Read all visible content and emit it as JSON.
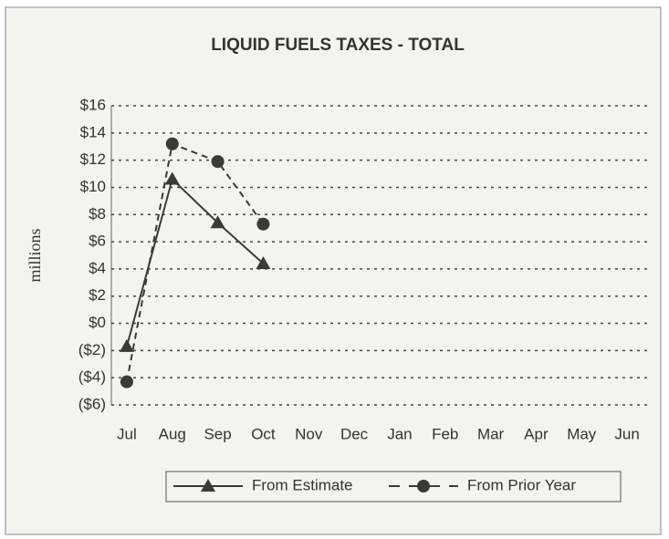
{
  "chart_data": {
    "type": "line",
    "title": "LIQUID FUELS TAXES - TOTAL",
    "y_label": "millions",
    "categories": [
      "Jul",
      "Aug",
      "Sep",
      "Oct",
      "Nov",
      "Dec",
      "Jan",
      "Feb",
      "Mar",
      "Apr",
      "May",
      "Jun"
    ],
    "series": [
      {
        "name": "From Estimate",
        "color": "#3a3a3a",
        "marker": "triangle",
        "dash": false,
        "values": [
          -1.7,
          10.6,
          7.4,
          4.4,
          null,
          null,
          null,
          null,
          null,
          null,
          null,
          null
        ]
      },
      {
        "name": "From Prior Year",
        "color": "#3a3a3a",
        "marker": "circle",
        "dash": true,
        "values": [
          -4.3,
          13.2,
          11.9,
          7.3,
          null,
          null,
          null,
          null,
          null,
          null,
          null,
          null
        ]
      }
    ],
    "ylim": [
      -6,
      16
    ],
    "yticks": [
      {
        "value": -6,
        "label": "($6)"
      },
      {
        "value": -4,
        "label": "($4)"
      },
      {
        "value": -2,
        "label": "($2)"
      },
      {
        "value": 0,
        "label": "$0"
      },
      {
        "value": 2,
        "label": "$2"
      },
      {
        "value": 4,
        "label": "$4"
      },
      {
        "value": 6,
        "label": "$6"
      },
      {
        "value": 8,
        "label": "$8"
      },
      {
        "value": 10,
        "label": "$10"
      },
      {
        "value": 12,
        "label": "$12"
      },
      {
        "value": 14,
        "label": "$14"
      },
      {
        "value": 16,
        "label": "$16"
      }
    ],
    "grid": true,
    "legend": "bottom"
  }
}
